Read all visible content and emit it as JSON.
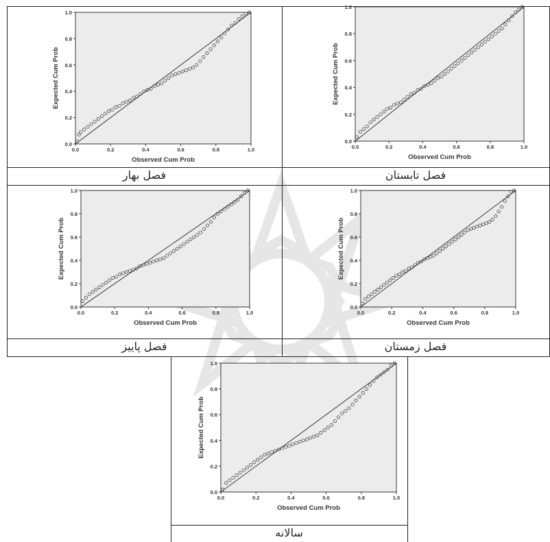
{
  "charts": {
    "x_label": "Observed Cum Prob",
    "y_label": "Expected Cum Prob",
    "ticks": [
      "0.0",
      "0.2",
      "0.4",
      "0.6",
      "0.8",
      "1.0"
    ],
    "captions": {
      "spring": "فصل بهار",
      "summer": "فصل تابستان",
      "autumn": "فصل پاییز",
      "winter": "فصل زمستان",
      "annual": "سالانه"
    }
  },
  "chart_data": [
    {
      "type": "scatter",
      "caption": "فصل بهار",
      "xlabel": "Observed Cum Prob",
      "ylabel": "Expected Cum Prob",
      "xlim": [
        0,
        1
      ],
      "ylim": [
        0,
        1
      ],
      "reference_line": [
        [
          0,
          0
        ],
        [
          1,
          1
        ]
      ],
      "points": [
        [
          0.01,
          0.02
        ],
        [
          0.02,
          0.07
        ],
        [
          0.03,
          0.09
        ],
        [
          0.05,
          0.11
        ],
        [
          0.07,
          0.13
        ],
        [
          0.09,
          0.15
        ],
        [
          0.11,
          0.17
        ],
        [
          0.13,
          0.19
        ],
        [
          0.15,
          0.21
        ],
        [
          0.17,
          0.23
        ],
        [
          0.19,
          0.25
        ],
        [
          0.21,
          0.26
        ],
        [
          0.23,
          0.28
        ],
        [
          0.25,
          0.29
        ],
        [
          0.27,
          0.31
        ],
        [
          0.29,
          0.32
        ],
        [
          0.31,
          0.33
        ],
        [
          0.33,
          0.35
        ],
        [
          0.35,
          0.36
        ],
        [
          0.37,
          0.38
        ],
        [
          0.39,
          0.4
        ],
        [
          0.41,
          0.41
        ],
        [
          0.43,
          0.42
        ],
        [
          0.45,
          0.44
        ],
        [
          0.47,
          0.45
        ],
        [
          0.49,
          0.46
        ],
        [
          0.51,
          0.48
        ],
        [
          0.53,
          0.5
        ],
        [
          0.55,
          0.52
        ],
        [
          0.57,
          0.53
        ],
        [
          0.59,
          0.54
        ],
        [
          0.61,
          0.55
        ],
        [
          0.63,
          0.56
        ],
        [
          0.65,
          0.57
        ],
        [
          0.67,
          0.58
        ],
        [
          0.69,
          0.6
        ],
        [
          0.71,
          0.63
        ],
        [
          0.73,
          0.66
        ],
        [
          0.75,
          0.69
        ],
        [
          0.77,
          0.72
        ],
        [
          0.79,
          0.75
        ],
        [
          0.81,
          0.78
        ],
        [
          0.83,
          0.81
        ],
        [
          0.85,
          0.84
        ],
        [
          0.87,
          0.87
        ],
        [
          0.89,
          0.9
        ],
        [
          0.91,
          0.92
        ],
        [
          0.93,
          0.95
        ],
        [
          0.95,
          0.97
        ],
        [
          0.97,
          0.99
        ],
        [
          0.99,
          1.0
        ]
      ]
    },
    {
      "type": "scatter",
      "caption": "فصل تابستان",
      "xlabel": "Observed Cum Prob",
      "ylabel": "Expected Cum Prob",
      "xlim": [
        0,
        1
      ],
      "ylim": [
        0,
        1
      ],
      "reference_line": [
        [
          0,
          0
        ],
        [
          1,
          1
        ]
      ],
      "points": [
        [
          0.01,
          0.03
        ],
        [
          0.03,
          0.07
        ],
        [
          0.05,
          0.09
        ],
        [
          0.07,
          0.11
        ],
        [
          0.09,
          0.14
        ],
        [
          0.11,
          0.16
        ],
        [
          0.13,
          0.18
        ],
        [
          0.15,
          0.2
        ],
        [
          0.17,
          0.22
        ],
        [
          0.19,
          0.24
        ],
        [
          0.21,
          0.25
        ],
        [
          0.23,
          0.27
        ],
        [
          0.25,
          0.28
        ],
        [
          0.27,
          0.29
        ],
        [
          0.29,
          0.31
        ],
        [
          0.31,
          0.33
        ],
        [
          0.33,
          0.35
        ],
        [
          0.35,
          0.36
        ],
        [
          0.37,
          0.38
        ],
        [
          0.39,
          0.39
        ],
        [
          0.41,
          0.41
        ],
        [
          0.43,
          0.42
        ],
        [
          0.45,
          0.43
        ],
        [
          0.47,
          0.45
        ],
        [
          0.49,
          0.47
        ],
        [
          0.51,
          0.48
        ],
        [
          0.53,
          0.5
        ],
        [
          0.55,
          0.52
        ],
        [
          0.57,
          0.54
        ],
        [
          0.59,
          0.56
        ],
        [
          0.61,
          0.58
        ],
        [
          0.63,
          0.6
        ],
        [
          0.65,
          0.62
        ],
        [
          0.67,
          0.64
        ],
        [
          0.69,
          0.66
        ],
        [
          0.71,
          0.68
        ],
        [
          0.73,
          0.7
        ],
        [
          0.75,
          0.72
        ],
        [
          0.77,
          0.74
        ],
        [
          0.79,
          0.76
        ],
        [
          0.81,
          0.78
        ],
        [
          0.83,
          0.8
        ],
        [
          0.85,
          0.82
        ],
        [
          0.87,
          0.84
        ],
        [
          0.89,
          0.87
        ],
        [
          0.91,
          0.9
        ],
        [
          0.93,
          0.93
        ],
        [
          0.95,
          0.96
        ],
        [
          0.97,
          0.98
        ],
        [
          0.99,
          1.0
        ]
      ]
    },
    {
      "type": "scatter",
      "caption": "فصل پاییز",
      "xlabel": "Observed Cum Prob",
      "ylabel": "Expected Cum Prob",
      "xlim": [
        0,
        1
      ],
      "ylim": [
        0,
        1
      ],
      "reference_line": [
        [
          0,
          0
        ],
        [
          1,
          1
        ]
      ],
      "points": [
        [
          0.01,
          0.05
        ],
        [
          0.03,
          0.08
        ],
        [
          0.05,
          0.11
        ],
        [
          0.07,
          0.13
        ],
        [
          0.09,
          0.15
        ],
        [
          0.11,
          0.17
        ],
        [
          0.13,
          0.19
        ],
        [
          0.15,
          0.21
        ],
        [
          0.17,
          0.23
        ],
        [
          0.19,
          0.25
        ],
        [
          0.21,
          0.26
        ],
        [
          0.23,
          0.28
        ],
        [
          0.25,
          0.29
        ],
        [
          0.27,
          0.3
        ],
        [
          0.29,
          0.31
        ],
        [
          0.31,
          0.32
        ],
        [
          0.33,
          0.33
        ],
        [
          0.35,
          0.35
        ],
        [
          0.37,
          0.36
        ],
        [
          0.39,
          0.37
        ],
        [
          0.41,
          0.38
        ],
        [
          0.43,
          0.39
        ],
        [
          0.45,
          0.4
        ],
        [
          0.47,
          0.41
        ],
        [
          0.49,
          0.42
        ],
        [
          0.51,
          0.44
        ],
        [
          0.53,
          0.46
        ],
        [
          0.55,
          0.48
        ],
        [
          0.57,
          0.5
        ],
        [
          0.59,
          0.52
        ],
        [
          0.61,
          0.54
        ],
        [
          0.63,
          0.56
        ],
        [
          0.65,
          0.58
        ],
        [
          0.67,
          0.6
        ],
        [
          0.69,
          0.62
        ],
        [
          0.71,
          0.64
        ],
        [
          0.73,
          0.67
        ],
        [
          0.75,
          0.7
        ],
        [
          0.77,
          0.73
        ],
        [
          0.79,
          0.77
        ],
        [
          0.81,
          0.8
        ],
        [
          0.83,
          0.82
        ],
        [
          0.85,
          0.84
        ],
        [
          0.87,
          0.86
        ],
        [
          0.89,
          0.88
        ],
        [
          0.91,
          0.9
        ],
        [
          0.93,
          0.92
        ],
        [
          0.95,
          0.95
        ],
        [
          0.97,
          0.98
        ],
        [
          0.99,
          1.0
        ]
      ]
    },
    {
      "type": "scatter",
      "caption": "فصل زمستان",
      "xlabel": "Observed Cum Prob",
      "ylabel": "Expected Cum Prob",
      "xlim": [
        0,
        1
      ],
      "ylim": [
        0,
        1
      ],
      "reference_line": [
        [
          0,
          0
        ],
        [
          1,
          1
        ]
      ],
      "points": [
        [
          0.01,
          0.03
        ],
        [
          0.03,
          0.07
        ],
        [
          0.05,
          0.09
        ],
        [
          0.07,
          0.11
        ],
        [
          0.09,
          0.13
        ],
        [
          0.11,
          0.15
        ],
        [
          0.13,
          0.17
        ],
        [
          0.15,
          0.19
        ],
        [
          0.17,
          0.21
        ],
        [
          0.19,
          0.23
        ],
        [
          0.21,
          0.25
        ],
        [
          0.23,
          0.27
        ],
        [
          0.25,
          0.28
        ],
        [
          0.27,
          0.3
        ],
        [
          0.29,
          0.31
        ],
        [
          0.31,
          0.33
        ],
        [
          0.33,
          0.34
        ],
        [
          0.35,
          0.36
        ],
        [
          0.37,
          0.38
        ],
        [
          0.39,
          0.39
        ],
        [
          0.41,
          0.41
        ],
        [
          0.43,
          0.42
        ],
        [
          0.45,
          0.43
        ],
        [
          0.47,
          0.44
        ],
        [
          0.49,
          0.46
        ],
        [
          0.51,
          0.48
        ],
        [
          0.53,
          0.5
        ],
        [
          0.55,
          0.52
        ],
        [
          0.57,
          0.54
        ],
        [
          0.59,
          0.56
        ],
        [
          0.61,
          0.58
        ],
        [
          0.63,
          0.6
        ],
        [
          0.65,
          0.62
        ],
        [
          0.67,
          0.64
        ],
        [
          0.69,
          0.66
        ],
        [
          0.71,
          0.67
        ],
        [
          0.73,
          0.68
        ],
        [
          0.75,
          0.69
        ],
        [
          0.77,
          0.7
        ],
        [
          0.79,
          0.71
        ],
        [
          0.81,
          0.72
        ],
        [
          0.83,
          0.73
        ],
        [
          0.85,
          0.75
        ],
        [
          0.87,
          0.78
        ],
        [
          0.89,
          0.82
        ],
        [
          0.91,
          0.86
        ],
        [
          0.93,
          0.91
        ],
        [
          0.95,
          0.95
        ],
        [
          0.97,
          0.99
        ],
        [
          0.99,
          1.0
        ]
      ]
    },
    {
      "type": "scatter",
      "caption": "سالانه",
      "xlabel": "Observed Cum Prob",
      "ylabel": "Expected Cum Prob",
      "xlim": [
        0,
        1
      ],
      "ylim": [
        0,
        1
      ],
      "reference_line": [
        [
          0,
          0
        ],
        [
          1,
          1
        ]
      ],
      "points": [
        [
          0.01,
          0.02
        ],
        [
          0.03,
          0.07
        ],
        [
          0.05,
          0.09
        ],
        [
          0.07,
          0.11
        ],
        [
          0.09,
          0.13
        ],
        [
          0.11,
          0.15
        ],
        [
          0.13,
          0.17
        ],
        [
          0.15,
          0.19
        ],
        [
          0.17,
          0.21
        ],
        [
          0.19,
          0.23
        ],
        [
          0.21,
          0.25
        ],
        [
          0.23,
          0.27
        ],
        [
          0.25,
          0.29
        ],
        [
          0.27,
          0.3
        ],
        [
          0.29,
          0.31
        ],
        [
          0.31,
          0.32
        ],
        [
          0.33,
          0.33
        ],
        [
          0.35,
          0.34
        ],
        [
          0.37,
          0.35
        ],
        [
          0.39,
          0.36
        ],
        [
          0.41,
          0.37
        ],
        [
          0.43,
          0.38
        ],
        [
          0.45,
          0.39
        ],
        [
          0.47,
          0.4
        ],
        [
          0.49,
          0.41
        ],
        [
          0.51,
          0.42
        ],
        [
          0.53,
          0.43
        ],
        [
          0.55,
          0.44
        ],
        [
          0.57,
          0.46
        ],
        [
          0.59,
          0.48
        ],
        [
          0.61,
          0.5
        ],
        [
          0.63,
          0.52
        ],
        [
          0.65,
          0.55
        ],
        [
          0.67,
          0.58
        ],
        [
          0.69,
          0.61
        ],
        [
          0.71,
          0.63
        ],
        [
          0.73,
          0.65
        ],
        [
          0.75,
          0.68
        ],
        [
          0.77,
          0.71
        ],
        [
          0.79,
          0.74
        ],
        [
          0.81,
          0.77
        ],
        [
          0.83,
          0.8
        ],
        [
          0.85,
          0.83
        ],
        [
          0.87,
          0.86
        ],
        [
          0.89,
          0.89
        ],
        [
          0.91,
          0.91
        ],
        [
          0.93,
          0.93
        ],
        [
          0.95,
          0.95
        ],
        [
          0.97,
          0.98
        ],
        [
          0.99,
          1.0
        ]
      ]
    }
  ]
}
